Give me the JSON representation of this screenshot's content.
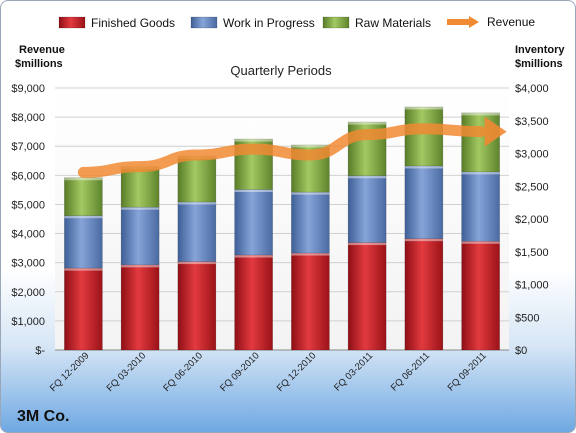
{
  "chart_data": {
    "type": "bar",
    "stacked": true,
    "title": "Quarterly Periods",
    "company": "3M Co.",
    "left_axis_label": [
      "Revenue",
      "$millions"
    ],
    "right_axis_label": [
      "Inventory",
      "$millions"
    ],
    "left_ticks": [
      "$-",
      "$1,000",
      "$2,000",
      "$3,000",
      "$4,000",
      "$5,000",
      "$6,000",
      "$7,000",
      "$8,000",
      "$9,000"
    ],
    "right_ticks": [
      "$0",
      "$500",
      "$1,000",
      "$1,500",
      "$2,000",
      "$2,500",
      "$3,000",
      "$3,500",
      "$4,000"
    ],
    "left_ylim": [
      0,
      9000
    ],
    "right_ylim": [
      0,
      4000
    ],
    "legend_position": "top",
    "categories": [
      "FQ 12-2009",
      "FQ 03-2010",
      "FQ 06-2010",
      "FQ 09-2010",
      "FQ 12-2010",
      "FQ 03-2011",
      "FQ 06-2011",
      "FQ 09-2011"
    ],
    "series": [
      {
        "name": "Finished Goods",
        "axis": "right",
        "color": "#c0181f",
        "values": [
          1250,
          1300,
          1350,
          1450,
          1480,
          1640,
          1700,
          1660
        ]
      },
      {
        "name": "Work in Progress",
        "axis": "right",
        "color": "#5f7fb8",
        "values": [
          800,
          880,
          910,
          1000,
          930,
          1020,
          1110,
          1060
        ]
      },
      {
        "name": "Raw Materials",
        "axis": "right",
        "color": "#79a33e",
        "values": [
          580,
          620,
          700,
          770,
          720,
          820,
          900,
          900
        ]
      },
      {
        "name": "Revenue",
        "axis": "left",
        "type": "line",
        "color": "#f08a33",
        "values": [
          6100,
          6300,
          6700,
          6900,
          6700,
          7400,
          7600,
          7500
        ]
      }
    ]
  }
}
